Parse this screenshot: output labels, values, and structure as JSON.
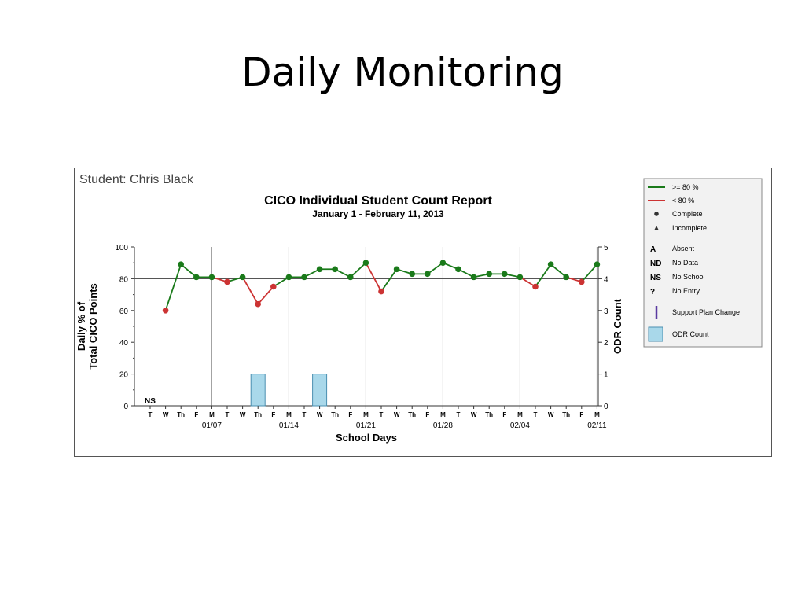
{
  "slide": {
    "title": "Daily Monitoring"
  },
  "chart_data": {
    "type": "line",
    "student_label": "Student: Chris Black",
    "title": "CICO Individual Student Count Report",
    "subtitle": "January 1 - February 11, 2013",
    "xlabel": "School Days",
    "ylabel_left_line1": "Daily % of",
    "ylabel_left_line2": "Total CICO Points",
    "ylabel_right": "ODR Count",
    "ylim_left": [
      0,
      100
    ],
    "ylim_right": [
      0,
      5
    ],
    "yticks_left": [
      "0",
      "20",
      "40",
      "60",
      "80",
      "100"
    ],
    "yticks_right": [
      "0",
      "1",
      "2",
      "3",
      "4",
      "5"
    ],
    "threshold": 80,
    "days": [
      "T",
      "W",
      "Th",
      "F",
      "M",
      "T",
      "W",
      "Th",
      "F",
      "M",
      "T",
      "W",
      "Th",
      "F",
      "M",
      "T",
      "W",
      "Th",
      "F",
      "M",
      "T",
      "W",
      "Th",
      "F",
      "M",
      "T",
      "W",
      "Th",
      "F",
      "M"
    ],
    "date_labels": [
      {
        "day_index": 4,
        "label": "01/07"
      },
      {
        "day_index": 9,
        "label": "01/14"
      },
      {
        "day_index": 14,
        "label": "01/21"
      },
      {
        "day_index": 19,
        "label": "01/28"
      },
      {
        "day_index": 24,
        "label": "02/04"
      },
      {
        "day_index": 29,
        "label": "02/11"
      }
    ],
    "vertical_gridlines_at_days": [
      4,
      9,
      14,
      19,
      24,
      29
    ],
    "daily_percent": [
      null,
      60,
      89,
      81,
      81,
      78,
      81,
      64,
      75,
      81,
      81,
      86,
      86,
      81,
      90,
      72,
      86,
      83,
      83,
      90,
      86,
      81,
      83,
      83,
      81,
      75,
      89,
      81,
      78,
      89
    ],
    "annotations": [
      {
        "day_index": 0,
        "text": "NS"
      }
    ],
    "odr_count": [
      0,
      0,
      0,
      0,
      0,
      0,
      0,
      1,
      0,
      0,
      0,
      1,
      0,
      0,
      0,
      0,
      0,
      0,
      0,
      0,
      0,
      0,
      0,
      0,
      0,
      0,
      0,
      0,
      0,
      0
    ],
    "colors": {
      "above": "#1a7a1a",
      "below": "#cc3333",
      "odr_fill": "#a9d8ea",
      "odr_stroke": "#4a8fb0",
      "threshold": "#555555",
      "grid": "#999999"
    },
    "legend": {
      "placement": "right",
      "items": [
        {
          "key": "above",
          "label": ">= 80 %"
        },
        {
          "key": "below",
          "label": "< 80 %"
        },
        {
          "key": "complete",
          "label": "Complete"
        },
        {
          "key": "incomplete",
          "label": "Incomplete"
        },
        {
          "key": "absent",
          "code": "A",
          "label": "Absent"
        },
        {
          "key": "nodata",
          "code": "ND",
          "label": "No Data"
        },
        {
          "key": "noschool",
          "code": "NS",
          "label": "No School"
        },
        {
          "key": "noentry",
          "code": "?",
          "label": "No Entry"
        },
        {
          "key": "support",
          "label": "Support Plan Change"
        },
        {
          "key": "odr",
          "label": "ODR Count"
        }
      ]
    }
  }
}
